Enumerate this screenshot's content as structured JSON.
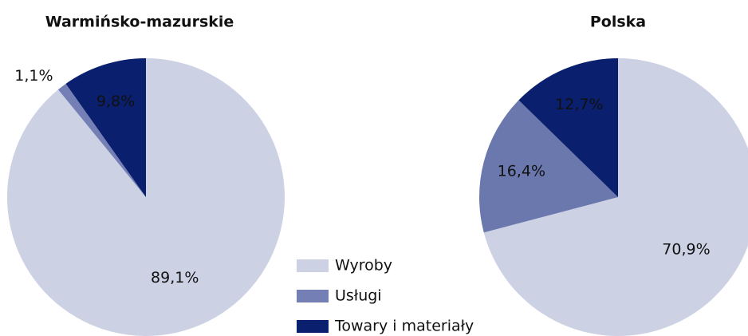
{
  "chart_data": [
    {
      "type": "pie",
      "title": "Warmińsko-mazurskie",
      "categories": [
        "Wyroby",
        "Usługi",
        "Towary i materiały"
      ],
      "values": [
        89.1,
        1.1,
        9.8
      ],
      "value_labels": [
        "89,1%",
        "1,1%",
        "9,8%"
      ],
      "colors": [
        "#cdd1e4",
        "#7480b5",
        "#0a1f6e"
      ],
      "legend": true
    },
    {
      "type": "pie",
      "title": "Polska",
      "categories": [
        "Wyroby",
        "Usługi",
        "Towary i materiały"
      ],
      "values": [
        70.9,
        16.4,
        12.7
      ],
      "value_labels": [
        "70,9%",
        "16,4%",
        "12,7%"
      ],
      "colors": [
        "#cdd1e4",
        "#6a78ae",
        "#0a1f6e"
      ]
    }
  ]
}
